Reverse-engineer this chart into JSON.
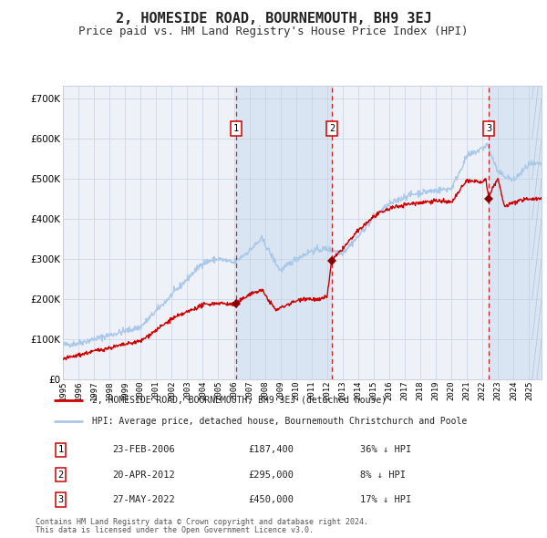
{
  "title": "2, HOMESIDE ROAD, BOURNEMOUTH, BH9 3EJ",
  "subtitle": "Price paid vs. HM Land Registry's House Price Index (HPI)",
  "title_fontsize": 11,
  "subtitle_fontsize": 9,
  "background_color": "#ffffff",
  "plot_bg_color": "#eef2f8",
  "grid_color": "#c8d0e0",
  "ylim": [
    0,
    730000
  ],
  "yticks": [
    0,
    100000,
    200000,
    300000,
    400000,
    500000,
    600000,
    700000
  ],
  "ytick_labels": [
    "£0",
    "£100K",
    "£200K",
    "£300K",
    "£400K",
    "£500K",
    "£600K",
    "£700K"
  ],
  "hpi_color": "#aac8e8",
  "price_color": "#cc0000",
  "sale_marker_color": "#880000",
  "dashed_line_color": "#cc0000",
  "shade_color": "#ccddf0",
  "shade_alpha": 0.6,
  "xlim_start": 1995.0,
  "xlim_end": 2025.8,
  "purchases": [
    {
      "label": "1",
      "date": "23-FEB-2006",
      "price": 187400,
      "price_str": "£187,400",
      "hpi_pct": "36% ↓ HPI",
      "x_year": 2006.14
    },
    {
      "label": "2",
      "date": "20-APR-2012",
      "price": 295000,
      "price_str": "£295,000",
      "hpi_pct": "8% ↓ HPI",
      "x_year": 2012.3
    },
    {
      "label": "3",
      "date": "27-MAY-2022",
      "price": 450000,
      "price_str": "£450,000",
      "hpi_pct": "17% ↓ HPI",
      "x_year": 2022.41
    }
  ],
  "legend_line1": "2, HOMESIDE ROAD, BOURNEMOUTH, BH9 3EJ (detached house)",
  "legend_line2": "HPI: Average price, detached house, Bournemouth Christchurch and Poole",
  "footnote1": "Contains HM Land Registry data © Crown copyright and database right 2024.",
  "footnote2": "This data is licensed under the Open Government Licence v3.0.",
  "xtick_years": [
    1995,
    1996,
    1997,
    1998,
    1999,
    2000,
    2001,
    2002,
    2003,
    2004,
    2005,
    2006,
    2007,
    2008,
    2009,
    2010,
    2011,
    2012,
    2013,
    2014,
    2015,
    2016,
    2017,
    2018,
    2019,
    2020,
    2021,
    2022,
    2023,
    2024,
    2025
  ]
}
